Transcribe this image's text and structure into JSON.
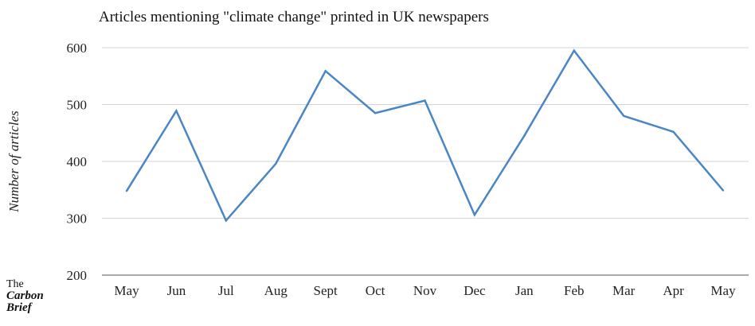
{
  "chart_data": {
    "type": "line",
    "title": "Articles mentioning \"climate change\" printed in UK newspapers",
    "ylabel": "Number of articles",
    "xlabel": "",
    "categories": [
      "May",
      "Jun",
      "Jul",
      "Aug",
      "Sept",
      "Oct",
      "Nov",
      "Dec",
      "Jan",
      "Feb",
      "Mar",
      "Apr",
      "May"
    ],
    "values": [
      348,
      489,
      296,
      396,
      559,
      485,
      507,
      306,
      445,
      595,
      480,
      452,
      349
    ],
    "ylim": [
      200,
      600
    ],
    "yticks": [
      200,
      300,
      400,
      500,
      600
    ],
    "grid": true,
    "line_color": "#4a86c5"
  },
  "branding": {
    "logo_the": "The",
    "logo_carbon": "Carbon",
    "logo_brief": "Brief"
  }
}
